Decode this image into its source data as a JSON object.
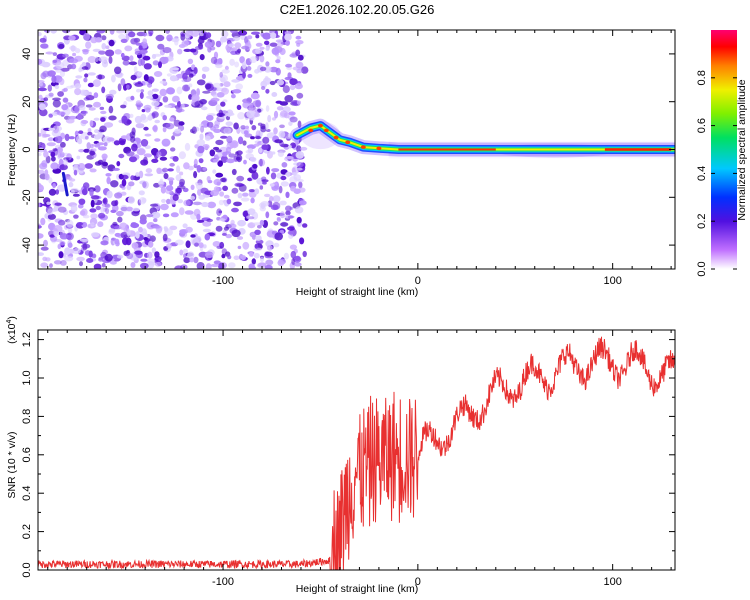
{
  "title": "C2E1.2026.102.20.05.G26",
  "chart_data": [
    {
      "type": "heatmap",
      "xlabel": "Height of straight line (km)",
      "ylabel": "Frequency (Hz)",
      "xlim": [
        -195,
        132
      ],
      "ylim": [
        -50,
        50
      ],
      "xticks": [
        -100,
        0,
        100
      ],
      "yticks": [
        -40,
        -20,
        0,
        20,
        40
      ],
      "noise_region_end_x": -58,
      "ridge": [
        {
          "x": -62,
          "y": 6
        },
        {
          "x": -55,
          "y": 9
        },
        {
          "x": -50,
          "y": 10
        },
        {
          "x": -45,
          "y": 7
        },
        {
          "x": -40,
          "y": 4
        },
        {
          "x": -35,
          "y": 3
        },
        {
          "x": -28,
          "y": 1
        },
        {
          "x": -20,
          "y": 0.5
        },
        {
          "x": -10,
          "y": 0
        },
        {
          "x": 0,
          "y": 0
        },
        {
          "x": 50,
          "y": 0
        },
        {
          "x": 100,
          "y": 0
        },
        {
          "x": 132,
          "y": 0
        }
      ],
      "colorbar": {
        "label": "Normalized spectral amplitude",
        "range": [
          0.0,
          1.0
        ],
        "ticks": [
          0.0,
          0.2,
          0.4,
          0.6,
          0.8
        ]
      }
    },
    {
      "type": "line",
      "xlabel": "Height of straight line (km)",
      "ylabel": "SNR (10 * v/v)",
      "multiplier_label": "(x10",
      "multiplier_exponent": "4",
      "xlim": [
        -195,
        132
      ],
      "ylim": [
        0.0,
        1.25
      ],
      "xticks": [
        -100,
        0,
        100
      ],
      "yticks": [
        0.0,
        0.2,
        0.4,
        0.6,
        0.8,
        1.0,
        1.2
      ],
      "series_color": "#e83030",
      "trend": [
        {
          "x": -195,
          "y": 0.03
        },
        {
          "x": -60,
          "y": 0.03
        },
        {
          "x": -45,
          "y": 0.05
        },
        {
          "x": -40,
          "y": 0.2
        },
        {
          "x": -33,
          "y": 0.5
        },
        {
          "x": -25,
          "y": 0.55
        },
        {
          "x": -15,
          "y": 0.6
        },
        {
          "x": 0,
          "y": 0.6
        },
        {
          "x": 10,
          "y": 0.7
        },
        {
          "x": 20,
          "y": 0.75
        },
        {
          "x": 30,
          "y": 0.85
        },
        {
          "x": 45,
          "y": 0.95
        },
        {
          "x": 60,
          "y": 1.0
        },
        {
          "x": 75,
          "y": 1.05
        },
        {
          "x": 90,
          "y": 1.08
        },
        {
          "x": 110,
          "y": 1.08
        },
        {
          "x": 132,
          "y": 1.0
        }
      ]
    }
  ]
}
